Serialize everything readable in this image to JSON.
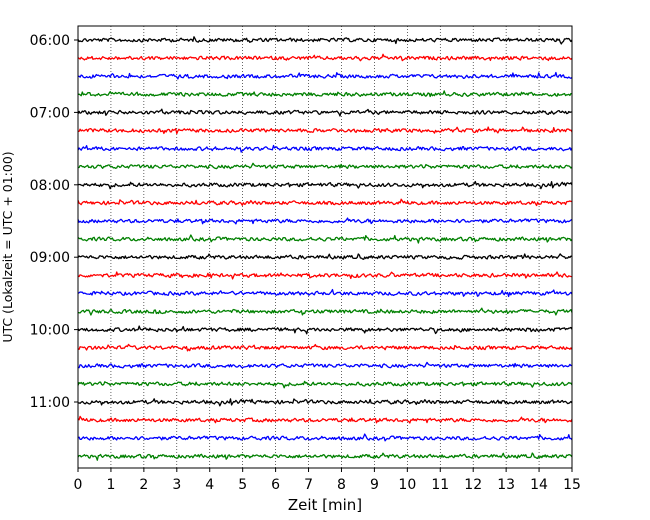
{
  "chart_data": {
    "type": "line",
    "title": "",
    "xlabel": "Zeit  [min]",
    "ylabel": "UTC (Lokalzeit = UTC + 01:00)",
    "xlim": [
      0,
      15
    ],
    "x_ticks": [
      "0",
      "1",
      "2",
      "3",
      "4",
      "5",
      "6",
      "7",
      "8",
      "9",
      "10",
      "11",
      "12",
      "13",
      "14",
      "15"
    ],
    "y_tick_labels": [
      "06:00",
      "07:00",
      "08:00",
      "09:00",
      "10:00",
      "11:00"
    ],
    "grid": "vertical dotted",
    "row_interval_minutes": 15,
    "row_start": "06:00",
    "row_count": 24,
    "colors": [
      "#000000",
      "#ff0000",
      "#0000ff",
      "#008000"
    ]
  }
}
